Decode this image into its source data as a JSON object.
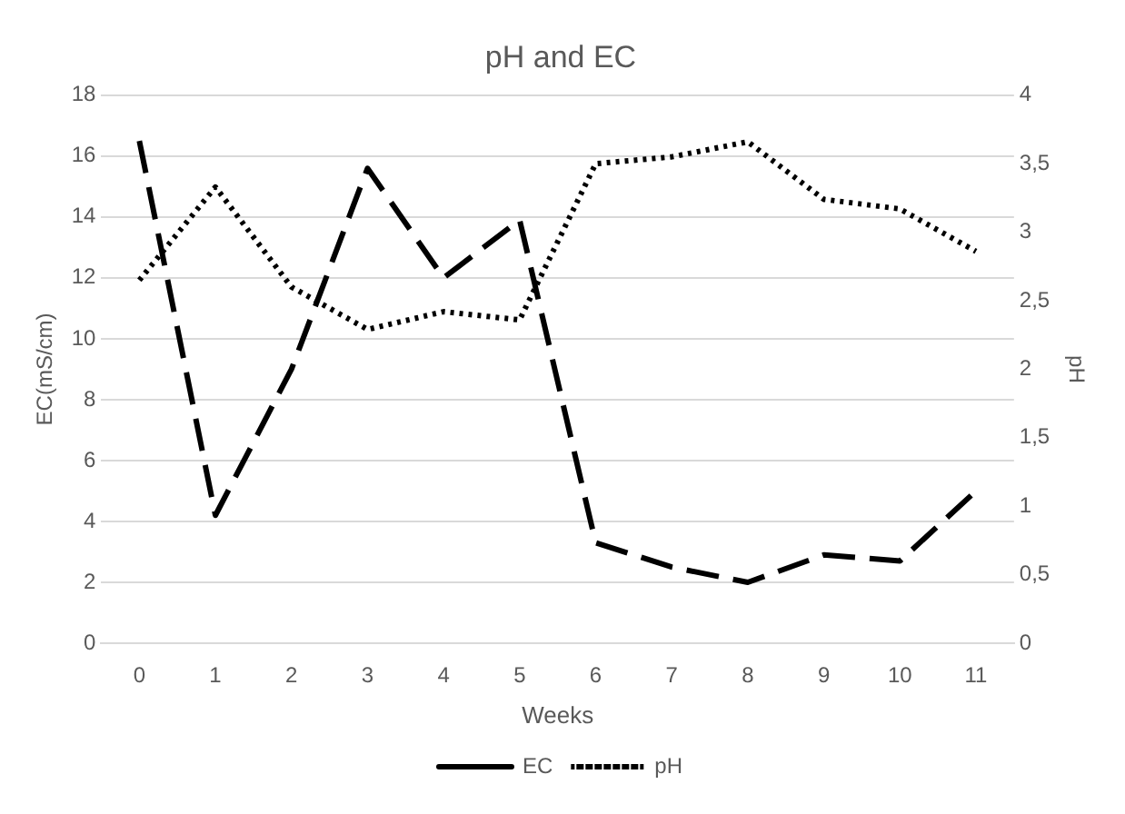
{
  "chart_data": {
    "type": "line",
    "title": "pH and EC",
    "xlabel": "Weeks",
    "ylabel": "EC(mS/cm)",
    "y2label": "pH",
    "categories": [
      "0",
      "1",
      "2",
      "3",
      "4",
      "5",
      "6",
      "7",
      "8",
      "9",
      "10",
      "11"
    ],
    "series": [
      {
        "name": "EC",
        "color": "#000000",
        "line_style": "dashed",
        "values": [
          16.5,
          4.2,
          9,
          15.6,
          12,
          13.9,
          3.3,
          2.5,
          2.0,
          2.9,
          2.7,
          5.0
        ]
      },
      {
        "name": "pH",
        "color": "#000000",
        "line_style": "dotted",
        "axis": "y2",
        "values": [
          2.65,
          3.33,
          2.6,
          2.29,
          2.42,
          2.36,
          3.5,
          3.55,
          3.66,
          3.24,
          3.17,
          2.86
        ]
      }
    ],
    "ylim": [
      0,
      18
    ],
    "yticks": [
      0,
      2,
      4,
      6,
      8,
      10,
      12,
      14,
      16,
      18
    ],
    "y2lim": [
      0,
      4
    ],
    "y2ticks": [
      0,
      {
        "value": 0.5,
        "label": "0,5"
      },
      1,
      {
        "value": 1.5,
        "label": "1,5"
      },
      2,
      {
        "value": 2.5,
        "label": "2,5"
      },
      3,
      {
        "value": 3.5,
        "label": "3,5"
      },
      4
    ],
    "grid": "y",
    "legend": "bottom",
    "marker": "none"
  }
}
